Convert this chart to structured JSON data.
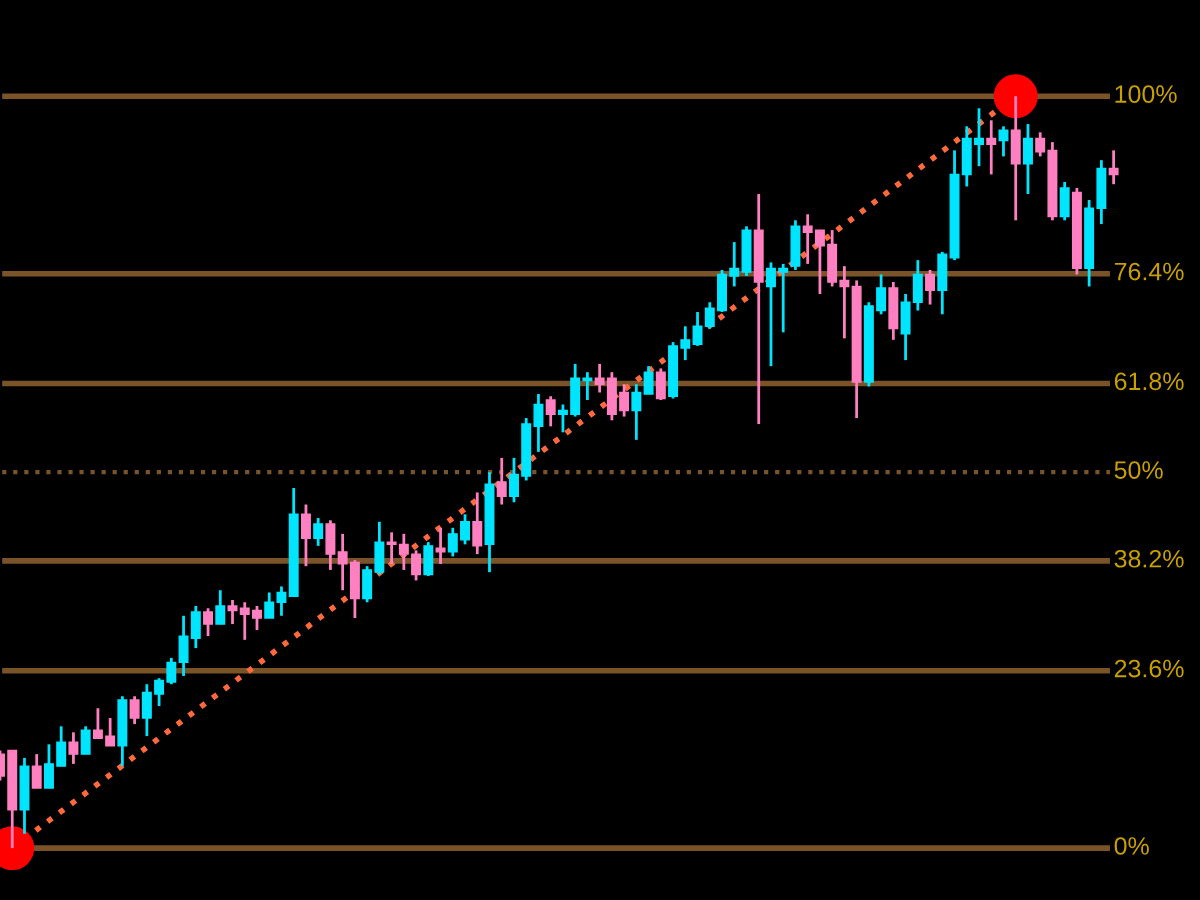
{
  "chart_data": {
    "type": "candlestick",
    "categories": [
      null,
      null,
      null,
      null,
      null,
      null,
      null,
      null,
      null,
      null,
      null,
      null,
      null,
      null,
      null,
      null,
      null,
      null,
      null,
      null,
      null,
      null,
      null,
      null,
      null,
      null,
      null,
      null,
      null,
      null,
      null,
      null,
      null,
      null,
      null,
      null,
      null,
      null,
      null,
      null,
      null,
      null,
      null,
      null,
      null,
      null,
      null,
      null,
      null,
      null,
      null,
      null,
      null,
      null,
      null,
      null,
      null,
      null,
      null,
      null,
      null,
      null,
      null,
      null,
      null,
      null,
      null,
      null,
      null,
      null,
      null,
      null,
      null,
      null,
      null,
      null,
      null,
      null,
      null,
      null,
      null,
      null,
      null,
      null,
      null,
      null,
      null,
      null,
      null,
      null,
      null,
      null
    ],
    "ohlc": [
      [
        12.5,
        13.0,
        9.0,
        9.6
      ],
      [
        13.0,
        13.0,
        0,
        5.1
      ],
      [
        5.1,
        12.0,
        1.9,
        10.9
      ],
      [
        10.9,
        12.5,
        8.0,
        8.0
      ],
      [
        8.0,
        13.8,
        8.0,
        11.2
      ],
      [
        10.9,
        16.2,
        10.9,
        14.1
      ],
      [
        14.1,
        15.4,
        11.2,
        12.5
      ],
      [
        12.5,
        16.2,
        12.5,
        15.7
      ],
      [
        15.7,
        18.6,
        14.6,
        14.6
      ],
      [
        14.9,
        17.3,
        13.6,
        13.6
      ],
      [
        13.6,
        20.2,
        10.9,
        19.7
      ],
      [
        19.7,
        20.2,
        16.5,
        17.3
      ],
      [
        17.3,
        21.8,
        14.9,
        20.7
      ],
      [
        20.5,
        22.6,
        18.9,
        22.3
      ],
      [
        22.1,
        25.3,
        21.8,
        24.7
      ],
      [
        24.7,
        30.9,
        22.9,
        28.2
      ],
      [
        27.9,
        32.2,
        26.6,
        31.4
      ],
      [
        31.4,
        31.9,
        28.2,
        29.8
      ],
      [
        29.8,
        34.3,
        29.8,
        32.2
      ],
      [
        32.2,
        33.0,
        29.8,
        31.6
      ],
      [
        31.9,
        32.7,
        27.7,
        31.1
      ],
      [
        31.6,
        32.2,
        29.0,
        30.6
      ],
      [
        30.6,
        34.0,
        30.6,
        32.7
      ],
      [
        32.7,
        34.8,
        30.9,
        34.0
      ],
      [
        33.5,
        47.9,
        33.5,
        44.4
      ],
      [
        44.4,
        45.7,
        37.5,
        41.2
      ],
      [
        41.2,
        43.9,
        40.2,
        43.1
      ],
      [
        43.1,
        43.6,
        37.0,
        39.1
      ],
      [
        39.4,
        41.8,
        34.3,
        37.8
      ],
      [
        38.0,
        38.3,
        30.6,
        33.2
      ],
      [
        33.2,
        37.5,
        32.7,
        37.0
      ],
      [
        36.7,
        43.4,
        36.4,
        40.7
      ],
      [
        40.7,
        42.0,
        37.8,
        40.4
      ],
      [
        40.4,
        41.8,
        37.0,
        39.1
      ],
      [
        39.1,
        39.6,
        35.6,
        36.4
      ],
      [
        36.4,
        40.7,
        36.2,
        40.2
      ],
      [
        39.9,
        42.6,
        37.8,
        39.4
      ],
      [
        39.4,
        42.6,
        38.8,
        41.8
      ],
      [
        41.0,
        44.4,
        40.4,
        43.4
      ],
      [
        43.4,
        47.3,
        39.1,
        40.2
      ],
      [
        40.4,
        50.0,
        36.7,
        48.4
      ],
      [
        48.7,
        51.9,
        45.7,
        46.8
      ],
      [
        46.8,
        51.9,
        46.0,
        49.7
      ],
      [
        49.5,
        57.2,
        48.9,
        56.4
      ],
      [
        56.1,
        60.4,
        52.7,
        59.0
      ],
      [
        59.6,
        60.1,
        56.1,
        57.7
      ],
      [
        57.7,
        59.0,
        55.3,
        58.2
      ],
      [
        57.7,
        64.4,
        57.4,
        62.5
      ],
      [
        62.2,
        63.3,
        59.6,
        62.5
      ],
      [
        62.5,
        64.4,
        60.6,
        61.7
      ],
      [
        62.5,
        63.3,
        56.9,
        57.7
      ],
      [
        60.6,
        61.7,
        57.4,
        58.2
      ],
      [
        58.2,
        61.7,
        54.3,
        60.6
      ],
      [
        60.4,
        64.1,
        60.4,
        63.3
      ],
      [
        63.3,
        63.8,
        59.6,
        59.8
      ],
      [
        60.1,
        67.3,
        59.8,
        66.8
      ],
      [
        66.5,
        69.4,
        64.9,
        67.6
      ],
      [
        67.0,
        71.3,
        66.8,
        69.4
      ],
      [
        69.4,
        72.6,
        69.1,
        71.8
      ],
      [
        71.5,
        76.9,
        71.3,
        76.3
      ],
      [
        76.1,
        80.6,
        74.7,
        77.1
      ],
      [
        76.6,
        82.7,
        76.1,
        82.2
      ],
      [
        82.2,
        87.0,
        56.4,
        75.3
      ],
      [
        74.7,
        77.9,
        64.1,
        77.1
      ],
      [
        76.6,
        77.7,
        68.6,
        77.1
      ],
      [
        77.4,
        83.5,
        76.9,
        82.7
      ],
      [
        82.7,
        84.3,
        77.7,
        81.9
      ],
      [
        82.2,
        82.2,
        73.7,
        80.1
      ],
      [
        80.3,
        82.2,
        74.7,
        75.3
      ],
      [
        75.5,
        77.4,
        67.8,
        74.7
      ],
      [
        74.7,
        75.5,
        57.2,
        62.0
      ],
      [
        62.0,
        72.6,
        61.4,
        72.1
      ],
      [
        71.5,
        76.3,
        71.0,
        74.5
      ],
      [
        74.5,
        75.3,
        67.6,
        69.1
      ],
      [
        68.4,
        73.7,
        64.9,
        72.6
      ],
      [
        72.6,
        78.2,
        71.5,
        76.3
      ],
      [
        76.3,
        76.9,
        72.3,
        74.2
      ],
      [
        74.2,
        79.3,
        71.0,
        79.0
      ],
      [
        78.5,
        92.8,
        78.2,
        89.6
      ],
      [
        89.6,
        96.0,
        88.0,
        94.4
      ],
      [
        93.6,
        98.4,
        90.7,
        94.4
      ],
      [
        94.4,
        96.8,
        89.6,
        93.6
      ],
      [
        94.1,
        96.0,
        92.0,
        95.5
      ],
      [
        95.5,
        100,
        83.5,
        91.0
      ],
      [
        91.0,
        96.3,
        87.0,
        94.4
      ],
      [
        94.4,
        95.2,
        92.0,
        92.6
      ],
      [
        92.8,
        93.9,
        83.5,
        84.0
      ],
      [
        84.0,
        88.6,
        83.5,
        87.8
      ],
      [
        87.2,
        87.8,
        76.3,
        77.1
      ],
      [
        77.1,
        86.2,
        74.7,
        85.1
      ],
      [
        85.1,
        91.5,
        83.0,
        90.4
      ],
      [
        90.4,
        92.8,
        88.3,
        89.6
      ]
    ],
    "colors": [
      "#ff80c0",
      "#ff80c0",
      "#00e5ff",
      "#ff80c0",
      "#00e5ff",
      "#00e5ff",
      "#ff80c0",
      "#00e5ff",
      "#ff80c0",
      "#ff80c0",
      "#00e5ff",
      "#ff80c0",
      "#00e5ff",
      "#00e5ff",
      "#00e5ff",
      "#00e5ff",
      "#00e5ff",
      "#ff80c0",
      "#00e5ff",
      "#ff80c0",
      "#ff80c0",
      "#ff80c0",
      "#00e5ff",
      "#00e5ff",
      "#00e5ff",
      "#ff80c0",
      "#00e5ff",
      "#ff80c0",
      "#ff80c0",
      "#ff80c0",
      "#00e5ff",
      "#00e5ff",
      "#ff80c0",
      "#ff80c0",
      "#ff80c0",
      "#00e5ff",
      "#ff80c0",
      "#00e5ff",
      "#00e5ff",
      "#ff80c0",
      "#00e5ff",
      "#ff80c0",
      "#00e5ff",
      "#00e5ff",
      "#00e5ff",
      "#ff80c0",
      "#00e5ff",
      "#00e5ff",
      "#00e5ff",
      "#ff80c0",
      "#ff80c0",
      "#ff80c0",
      "#00e5ff",
      "#00e5ff",
      "#ff80c0",
      "#00e5ff",
      "#00e5ff",
      "#00e5ff",
      "#00e5ff",
      "#00e5ff",
      "#00e5ff",
      "#00e5ff",
      "#ff80c0",
      "#00e5ff",
      "#00e5ff",
      "#00e5ff",
      "#ff80c0",
      "#ff80c0",
      "#ff80c0",
      "#ff80c0",
      "#ff80c0",
      "#00e5ff",
      "#00e5ff",
      "#ff80c0",
      "#00e5ff",
      "#00e5ff",
      "#ff80c0",
      "#00e5ff",
      "#00e5ff",
      "#00e5ff",
      "#00e5ff",
      "#ff80c0",
      "#00e5ff",
      "#ff80c0",
      "#00e5ff",
      "#ff80c0",
      "#ff80c0",
      "#00e5ff",
      "#ff80c0",
      "#00e5ff",
      "#00e5ff",
      "#ff80c0"
    ],
    "series": [
      {
        "type": "line",
        "values": [
          null,
          0,
          null,
          null,
          null,
          null,
          null,
          null,
          null,
          null,
          null,
          null,
          null,
          null,
          null,
          null,
          null,
          null,
          null,
          null,
          null,
          null,
          null,
          null,
          null,
          null,
          null,
          null,
          null,
          null,
          null,
          null,
          null,
          null,
          null,
          null,
          null,
          null,
          null,
          null,
          null,
          null,
          null,
          null,
          null,
          null,
          null,
          null,
          null,
          null,
          null,
          null,
          null,
          null,
          null,
          null,
          null,
          null,
          null,
          null,
          null,
          null,
          null,
          null,
          null,
          null,
          null,
          null,
          null,
          null,
          null,
          null,
          null,
          null,
          null,
          null,
          null,
          null,
          null,
          null,
          null,
          null,
          null,
          100,
          null,
          null,
          null,
          null,
          null,
          null,
          null,
          null
        ],
        "color": "#ff6a3d",
        "line_style": "dotted"
      },
      {
        "type": "scatter",
        "values": [
          null,
          0,
          null,
          null,
          null,
          null,
          null,
          null,
          null,
          null,
          null,
          null,
          null,
          null,
          null,
          null,
          null,
          null,
          null,
          null,
          null,
          null,
          null,
          null,
          null,
          null,
          null,
          null,
          null,
          null,
          null,
          null,
          null,
          null,
          null,
          null,
          null,
          null,
          null,
          null,
          null,
          null,
          null,
          null,
          null,
          null,
          null,
          null,
          null,
          null,
          null,
          null,
          null,
          null,
          null,
          null,
          null,
          null,
          null,
          null,
          null,
          null,
          null,
          null,
          null,
          null,
          null,
          null,
          null,
          null,
          null,
          null,
          null,
          null,
          null,
          null,
          null,
          null,
          null,
          null,
          null,
          null,
          null,
          100,
          null,
          null,
          null,
          null,
          null,
          null,
          null,
          null
        ],
        "color": "#ff0000",
        "marker": "circle"
      }
    ],
    "ylim": [
      -6.9,
      112.8
    ],
    "ref_lines": [
      {
        "axis": "y",
        "value": 100,
        "label": "100%",
        "color": "#7a5428",
        "line_style": "solid"
      },
      {
        "axis": "y",
        "value": 76.4,
        "label": "76.4%",
        "color": "#7a5428",
        "line_style": "solid"
      },
      {
        "axis": "y",
        "value": 61.8,
        "label": "61.8%",
        "color": "#7a5428",
        "line_style": "solid"
      },
      {
        "axis": "y",
        "value": 50,
        "label": "50%",
        "color": "#7a5428",
        "line_style": "dotted"
      },
      {
        "axis": "y",
        "value": 38.2,
        "label": "38.2%",
        "color": "#7a5428",
        "line_style": "solid"
      },
      {
        "axis": "y",
        "value": 23.6,
        "label": "23.6%",
        "color": "#7a5428",
        "line_style": "solid"
      },
      {
        "axis": "y",
        "value": 0,
        "label": "0%",
        "color": "#7a5428",
        "line_style": "solid"
      }
    ]
  }
}
